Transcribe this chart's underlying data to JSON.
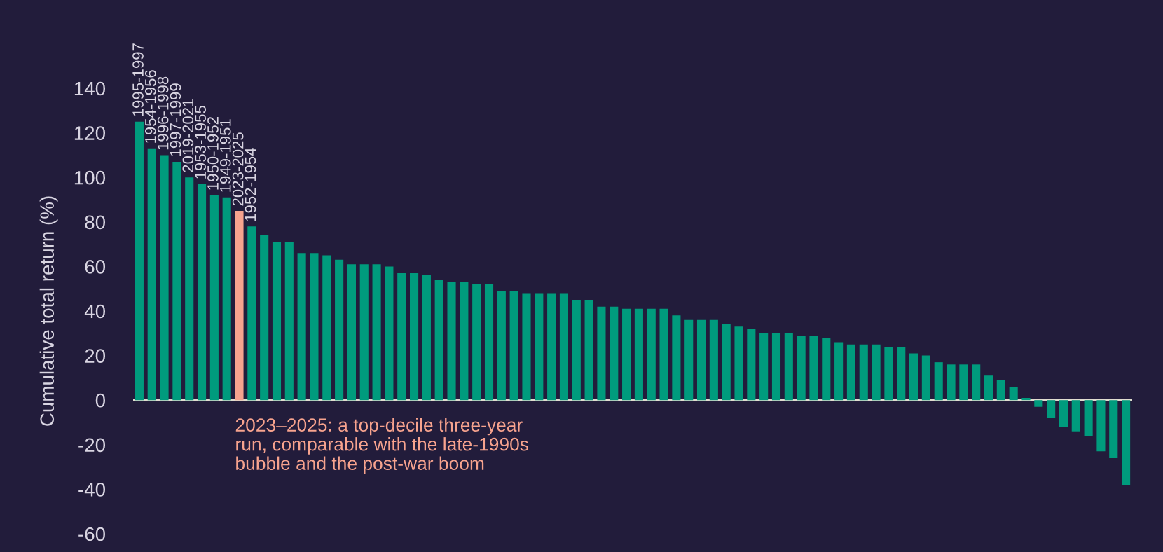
{
  "chart_data": {
    "type": "bar",
    "ylabel": "Cumulative total return (%)",
    "categories": [
      "1995-1997",
      "1954-1956",
      "1996-1998",
      "1997-1999",
      "2019-2021",
      "1953-1955",
      "1950-1952",
      "1949-1951",
      "2023-2025",
      "1952-1954",
      null,
      null,
      null,
      null,
      null,
      null,
      null,
      null,
      null,
      null,
      null,
      null,
      null,
      null,
      null,
      null,
      null,
      null,
      null,
      null,
      null,
      null,
      null,
      null,
      null,
      null,
      null,
      null,
      null,
      null,
      null,
      null,
      null,
      null,
      null,
      null,
      null,
      null,
      null,
      null,
      null,
      null,
      null,
      null,
      null,
      null,
      null,
      null,
      null,
      null,
      null,
      null,
      null,
      null,
      null,
      null,
      null,
      null,
      null,
      null,
      null,
      null,
      null,
      null,
      null,
      null,
      null,
      null,
      null,
      null
    ],
    "values": [
      125,
      113,
      110,
      107,
      100,
      97,
      92,
      91,
      85,
      78,
      74,
      71,
      71,
      66,
      66,
      65,
      63,
      61,
      61,
      61,
      60,
      57,
      57,
      56,
      54,
      53,
      53,
      52,
      52,
      49,
      49,
      48,
      48,
      48,
      48,
      45,
      45,
      42,
      42,
      41,
      41,
      41,
      41,
      38,
      36,
      36,
      36,
      34,
      33,
      32,
      30,
      30,
      30,
      29,
      29,
      28,
      26,
      25,
      25,
      25,
      24,
      24,
      21,
      20,
      17,
      16,
      16,
      16,
      11,
      9,
      6,
      1,
      -3,
      -8,
      -12,
      -14,
      -16,
      -23,
      -26,
      -38
    ],
    "colors": [
      "#009b7d",
      "#009b7d",
      "#009b7d",
      "#009b7d",
      "#009b7d",
      "#009b7d",
      "#009b7d",
      "#009b7d",
      "#f7a38e",
      "#009b7d",
      "#009b7d",
      "#009b7d",
      "#009b7d",
      "#009b7d",
      "#009b7d",
      "#009b7d",
      "#009b7d",
      "#009b7d",
      "#009b7d",
      "#009b7d",
      "#009b7d",
      "#009b7d",
      "#009b7d",
      "#009b7d",
      "#009b7d",
      "#009b7d",
      "#009b7d",
      "#009b7d",
      "#009b7d",
      "#009b7d",
      "#009b7d",
      "#009b7d",
      "#009b7d",
      "#009b7d",
      "#009b7d",
      "#009b7d",
      "#009b7d",
      "#009b7d",
      "#009b7d",
      "#009b7d",
      "#009b7d",
      "#009b7d",
      "#009b7d",
      "#009b7d",
      "#009b7d",
      "#009b7d",
      "#009b7d",
      "#009b7d",
      "#009b7d",
      "#009b7d",
      "#009b7d",
      "#009b7d",
      "#009b7d",
      "#009b7d",
      "#009b7d",
      "#009b7d",
      "#009b7d",
      "#009b7d",
      "#009b7d",
      "#009b7d",
      "#009b7d",
      "#009b7d",
      "#009b7d",
      "#009b7d",
      "#009b7d",
      "#009b7d",
      "#009b7d",
      "#009b7d",
      "#009b7d",
      "#009b7d",
      "#009b7d",
      "#009b7d",
      "#009b7d",
      "#009b7d",
      "#009b7d",
      "#009b7d",
      "#009b7d",
      "#009b7d",
      "#009b7d",
      "#009b7d"
    ],
    "ylim": [
      -60,
      140
    ],
    "yticks": [
      -60,
      -40,
      -20,
      0,
      20,
      40,
      60,
      80,
      100,
      120,
      140
    ],
    "grid": false,
    "ref_lines": [
      {
        "axis": "y",
        "value": 0,
        "color": "#e0dccf"
      }
    ],
    "legend": false,
    "annotations": [
      "2023–2025: a top-decile three-year\nrun, comparable with the late-1990s\nbubble and the post-war boom"
    ]
  }
}
